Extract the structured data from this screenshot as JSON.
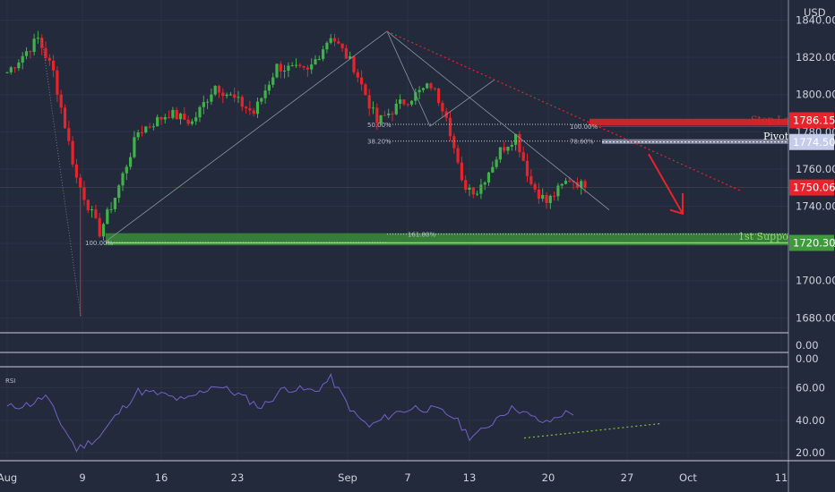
{
  "chart_data": {
    "type": "candlestick",
    "currency": "USD",
    "price_axis": {
      "ylim": [
        1672,
        1846
      ],
      "ticks": [
        "1840.00",
        "1820.00",
        "1800.00",
        "1780.00",
        "1760.00",
        "1740.00",
        "1720.00",
        "1700.00",
        "1680.00"
      ]
    },
    "date_axis": {
      "ticks": [
        "Aug",
        "9",
        "16",
        "23",
        "Sep",
        "7",
        "13",
        "20",
        "27",
        "Oct",
        "11"
      ]
    },
    "price_tags": [
      {
        "label": "1786.15",
        "color": "#e8232c"
      },
      {
        "label": "1774.50",
        "color": "#c5cbea"
      },
      {
        "label": "1750.06",
        "color": "#e8232c"
      },
      {
        "label": "1720.30",
        "color": "#3e9a3a"
      }
    ],
    "annotations": {
      "stop_loss": "Stop Loss",
      "pivot": "Pivot",
      "first_support": "1st Support",
      "fib_50": "50.00%",
      "fib_382": "38.20%",
      "fib_1618": "161.80%",
      "fib_100_left": "100.00%",
      "fib_100_right": "100.00%",
      "fib_786": "78.60%"
    },
    "levels": {
      "stop_loss": 1786.15,
      "pivot": 1774.5,
      "current": 1750.06,
      "support": 1720.3,
      "fib_50": 1784,
      "fib_382": 1775,
      "fib_1618": 1725
    },
    "anchors": [
      {
        "d": 0,
        "p": 1812
      },
      {
        "d": 4,
        "p": 1830
      },
      {
        "d": 6,
        "p": 1812
      },
      {
        "d": 9,
        "p": 1755
      },
      {
        "d": 12,
        "p": 1726
      },
      {
        "d": 14,
        "p": 1745
      },
      {
        "d": 17,
        "p": 1780
      },
      {
        "d": 21,
        "p": 1790
      },
      {
        "d": 24,
        "p": 1785
      },
      {
        "d": 27,
        "p": 1805
      },
      {
        "d": 32,
        "p": 1790
      },
      {
        "d": 35,
        "p": 1815
      },
      {
        "d": 39,
        "p": 1812
      },
      {
        "d": 42,
        "p": 1832
      },
      {
        "d": 45,
        "p": 1815
      },
      {
        "d": 48,
        "p": 1785
      },
      {
        "d": 51,
        "p": 1795
      },
      {
        "d": 55,
        "p": 1805
      },
      {
        "d": 57,
        "p": 1790
      },
      {
        "d": 59,
        "p": 1752
      },
      {
        "d": 61,
        "p": 1748
      },
      {
        "d": 64,
        "p": 1770
      },
      {
        "d": 66,
        "p": 1778
      },
      {
        "d": 68,
        "p": 1752
      },
      {
        "d": 70,
        "p": 1742
      },
      {
        "d": 73,
        "p": 1755
      },
      {
        "d": 75,
        "p": 1750
      }
    ],
    "rsi": {
      "label": "RSI",
      "ticks": [
        "60.00",
        "40.00",
        "20.00"
      ],
      "ylim": [
        15,
        72
      ],
      "anchors": [
        {
          "d": 0,
          "v": 48
        },
        {
          "d": 3,
          "v": 50
        },
        {
          "d": 5,
          "v": 55
        },
        {
          "d": 7,
          "v": 38
        },
        {
          "d": 9,
          "v": 22
        },
        {
          "d": 12,
          "v": 30
        },
        {
          "d": 14,
          "v": 42
        },
        {
          "d": 17,
          "v": 58
        },
        {
          "d": 20,
          "v": 56
        },
        {
          "d": 23,
          "v": 52
        },
        {
          "d": 27,
          "v": 62
        },
        {
          "d": 30,
          "v": 56
        },
        {
          "d": 33,
          "v": 48
        },
        {
          "d": 36,
          "v": 60
        },
        {
          "d": 40,
          "v": 58
        },
        {
          "d": 42,
          "v": 66
        },
        {
          "d": 45,
          "v": 44
        },
        {
          "d": 47,
          "v": 36
        },
        {
          "d": 50,
          "v": 44
        },
        {
          "d": 53,
          "v": 48
        },
        {
          "d": 56,
          "v": 46
        },
        {
          "d": 58,
          "v": 42
        },
        {
          "d": 60,
          "v": 30
        },
        {
          "d": 62,
          "v": 34
        },
        {
          "d": 64,
          "v": 44
        },
        {
          "d": 66,
          "v": 48
        },
        {
          "d": 68,
          "v": 42
        },
        {
          "d": 70,
          "v": 38
        },
        {
          "d": 72,
          "v": 44
        },
        {
          "d": 74,
          "v": 45
        }
      ]
    },
    "indicator_pane": {
      "label": "0.00"
    },
    "forecast_arrow_color": "#e8232c",
    "colors": {
      "bull": "#3fb34a",
      "bear": "#e8232c",
      "rsi": "#6e64c8",
      "background": "#232a3b"
    }
  }
}
